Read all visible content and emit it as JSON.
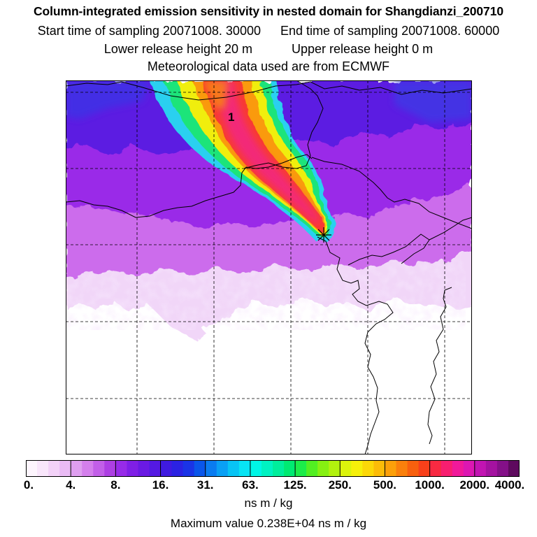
{
  "header": {
    "title": "Column-integrated emission sensitivity in nested domain for Shangdianzi_200710",
    "start_label": "Start time of sampling 20071008. 30000",
    "end_label": "End time of sampling 20071008. 60000",
    "lower_label": "Lower release height   20 m",
    "upper_label": "Upper release height    0 m",
    "met_label": "Meteorological data used are from ECMWF"
  },
  "map": {
    "plume_label": "1",
    "release_site": "Shangdianzi"
  },
  "colorbar": {
    "tick_labels": [
      "0.",
      "4.",
      "8.",
      "16.",
      "31.",
      "63.",
      "125.",
      "250.",
      "500.",
      "1000.",
      "2000.",
      "4000."
    ],
    "colors": [
      "#fdf5fd",
      "#f9e6fb",
      "#f3d2f8",
      "#eabbf5",
      "#df9ff0",
      "#d47fec",
      "#c25fe8",
      "#ad3fe3",
      "#972be8",
      "#7f1fe6",
      "#6a1ae3",
      "#5419e2",
      "#3f1ae0",
      "#2b22e2",
      "#1a34e6",
      "#0a56ea",
      "#0a7cf0",
      "#0aa0f4",
      "#08c4f4",
      "#08e4f4",
      "#00f6e6",
      "#00f2c2",
      "#00ee9c",
      "#00ea72",
      "#1cec4a",
      "#52ee22",
      "#86f012",
      "#b2f20e",
      "#dcf40c",
      "#f6f00a",
      "#fcd808",
      "#fcbc08",
      "#fca00a",
      "#fa800c",
      "#f8600e",
      "#f8401a",
      "#f82a42",
      "#f81e70",
      "#f0199a",
      "#dc17b2",
      "#c214b2",
      "#a412a0",
      "#841088",
      "#5e0a5e"
    ],
    "units": "ns m / kg"
  },
  "footer": {
    "max_value": "Maximum value  0.238E+04 ns m / kg"
  }
}
